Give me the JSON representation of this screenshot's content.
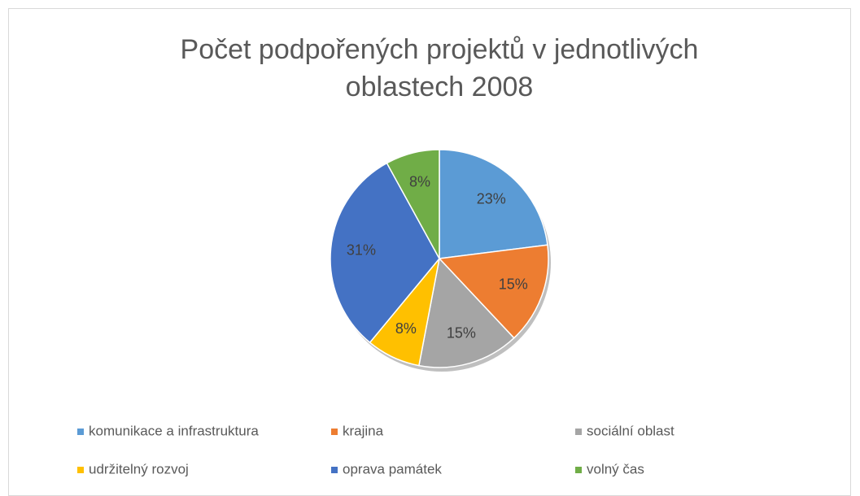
{
  "chart_data": {
    "type": "pie",
    "title": "Počet podpořených projektů v jednotlivých oblastech 2008",
    "categories": [
      "komunikace a infrastruktura",
      "krajina",
      "sociální oblast",
      "udržitelný rozvoj",
      "oprava památek",
      "volný čas"
    ],
    "values": [
      23,
      15,
      15,
      8,
      31,
      8
    ],
    "value_labels": [
      "23%",
      "15%",
      "15%",
      "8%",
      "31%",
      "8%"
    ],
    "colors": [
      "#5b9bd5",
      "#ed7d31",
      "#a5a5a5",
      "#ffc000",
      "#4472c4",
      "#70ad47"
    ],
    "legend": "bottom"
  }
}
